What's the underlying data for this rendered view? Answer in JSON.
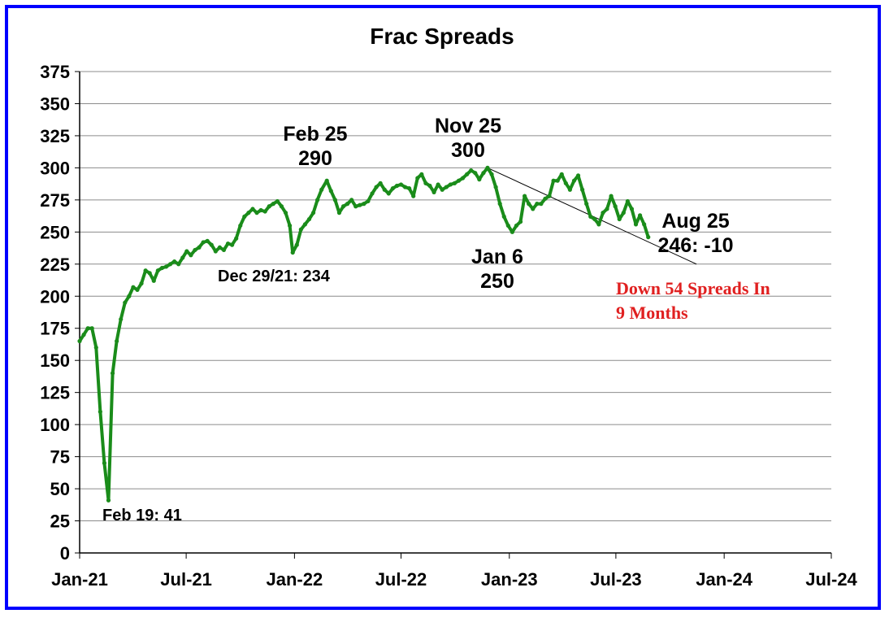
{
  "chart_data": {
    "type": "line",
    "title": "Frac Spreads",
    "xlabel": "",
    "ylabel": "",
    "xlim": [
      "2021-01-01",
      "2024-07-01"
    ],
    "ylim": [
      0,
      375
    ],
    "y_ticks": [
      0,
      25,
      50,
      75,
      100,
      125,
      150,
      175,
      200,
      225,
      250,
      275,
      300,
      325,
      350,
      375
    ],
    "x_ticks": [
      {
        "date": "2021-01-01",
        "label": "Jan-21"
      },
      {
        "date": "2021-07-01",
        "label": "Jul-21"
      },
      {
        "date": "2022-01-01",
        "label": "Jan-22"
      },
      {
        "date": "2022-07-01",
        "label": "Jul-22"
      },
      {
        "date": "2023-01-01",
        "label": "Jan-23"
      },
      {
        "date": "2023-07-01",
        "label": "Jul-23"
      },
      {
        "date": "2024-01-01",
        "label": "Jan-24"
      },
      {
        "date": "2024-07-01",
        "label": "Jul-24"
      }
    ],
    "grid": "horizontal",
    "series": [
      {
        "name": "",
        "color": "#1a8c1a",
        "points": [
          [
            "2021-01-01",
            165
          ],
          [
            "2021-01-08",
            170
          ],
          [
            "2021-01-15",
            175
          ],
          [
            "2021-01-22",
            175
          ],
          [
            "2021-01-29",
            160
          ],
          [
            "2021-02-05",
            110
          ],
          [
            "2021-02-12",
            70
          ],
          [
            "2021-02-19",
            41
          ],
          [
            "2021-02-26",
            140
          ],
          [
            "2021-03-05",
            165
          ],
          [
            "2021-03-12",
            182
          ],
          [
            "2021-03-19",
            195
          ],
          [
            "2021-03-26",
            200
          ],
          [
            "2021-04-02",
            207
          ],
          [
            "2021-04-09",
            205
          ],
          [
            "2021-04-16",
            210
          ],
          [
            "2021-04-23",
            220
          ],
          [
            "2021-04-30",
            218
          ],
          [
            "2021-05-07",
            212
          ],
          [
            "2021-05-14",
            220
          ],
          [
            "2021-05-21",
            222
          ],
          [
            "2021-05-28",
            223
          ],
          [
            "2021-06-04",
            225
          ],
          [
            "2021-06-11",
            227
          ],
          [
            "2021-06-18",
            225
          ],
          [
            "2021-06-25",
            230
          ],
          [
            "2021-07-02",
            235
          ],
          [
            "2021-07-09",
            232
          ],
          [
            "2021-07-16",
            236
          ],
          [
            "2021-07-23",
            238
          ],
          [
            "2021-07-30",
            242
          ],
          [
            "2021-08-06",
            243
          ],
          [
            "2021-08-13",
            240
          ],
          [
            "2021-08-20",
            235
          ],
          [
            "2021-08-27",
            238
          ],
          [
            "2021-09-03",
            236
          ],
          [
            "2021-09-10",
            241
          ],
          [
            "2021-09-17",
            240
          ],
          [
            "2021-09-24",
            245
          ],
          [
            "2021-10-01",
            255
          ],
          [
            "2021-10-08",
            262
          ],
          [
            "2021-10-15",
            265
          ],
          [
            "2021-10-22",
            268
          ],
          [
            "2021-10-29",
            265
          ],
          [
            "2021-11-05",
            267
          ],
          [
            "2021-11-12",
            266
          ],
          [
            "2021-11-19",
            270
          ],
          [
            "2021-11-26",
            272
          ],
          [
            "2021-12-03",
            274
          ],
          [
            "2021-12-10",
            270
          ],
          [
            "2021-12-17",
            265
          ],
          [
            "2021-12-24",
            255
          ],
          [
            "2021-12-29",
            234
          ],
          [
            "2022-01-05",
            240
          ],
          [
            "2022-01-12",
            252
          ],
          [
            "2022-01-19",
            256
          ],
          [
            "2022-01-26",
            260
          ],
          [
            "2022-02-02",
            265
          ],
          [
            "2022-02-09",
            275
          ],
          [
            "2022-02-16",
            283
          ],
          [
            "2022-02-25",
            290
          ],
          [
            "2022-03-04",
            282
          ],
          [
            "2022-03-11",
            275
          ],
          [
            "2022-03-18",
            265
          ],
          [
            "2022-03-25",
            270
          ],
          [
            "2022-04-01",
            272
          ],
          [
            "2022-04-08",
            275
          ],
          [
            "2022-04-15",
            270
          ],
          [
            "2022-04-22",
            271
          ],
          [
            "2022-04-29",
            272
          ],
          [
            "2022-05-06",
            274
          ],
          [
            "2022-05-13",
            280
          ],
          [
            "2022-05-20",
            285
          ],
          [
            "2022-05-27",
            288
          ],
          [
            "2022-06-03",
            283
          ],
          [
            "2022-06-10",
            280
          ],
          [
            "2022-06-17",
            284
          ],
          [
            "2022-06-24",
            286
          ],
          [
            "2022-07-01",
            287
          ],
          [
            "2022-07-08",
            285
          ],
          [
            "2022-07-15",
            284
          ],
          [
            "2022-07-22",
            278
          ],
          [
            "2022-07-29",
            292
          ],
          [
            "2022-08-05",
            295
          ],
          [
            "2022-08-12",
            288
          ],
          [
            "2022-08-19",
            286
          ],
          [
            "2022-08-26",
            281
          ],
          [
            "2022-09-02",
            287
          ],
          [
            "2022-09-09",
            283
          ],
          [
            "2022-09-16",
            285
          ],
          [
            "2022-09-23",
            287
          ],
          [
            "2022-09-30",
            288
          ],
          [
            "2022-10-07",
            290
          ],
          [
            "2022-10-14",
            292
          ],
          [
            "2022-10-21",
            295
          ],
          [
            "2022-10-28",
            298
          ],
          [
            "2022-11-04",
            296
          ],
          [
            "2022-11-11",
            291
          ],
          [
            "2022-11-18",
            296
          ],
          [
            "2022-11-25",
            300
          ],
          [
            "2022-12-02",
            295
          ],
          [
            "2022-12-09",
            285
          ],
          [
            "2022-12-16",
            272
          ],
          [
            "2022-12-23",
            262
          ],
          [
            "2022-12-30",
            255
          ],
          [
            "2023-01-06",
            250
          ],
          [
            "2023-01-13",
            255
          ],
          [
            "2023-01-20",
            258
          ],
          [
            "2023-01-27",
            278
          ],
          [
            "2023-02-03",
            272
          ],
          [
            "2023-02-10",
            268
          ],
          [
            "2023-02-17",
            272
          ],
          [
            "2023-02-24",
            272
          ],
          [
            "2023-03-03",
            276
          ],
          [
            "2023-03-10",
            278
          ],
          [
            "2023-03-17",
            290
          ],
          [
            "2023-03-24",
            290
          ],
          [
            "2023-03-31",
            295
          ],
          [
            "2023-04-07",
            288
          ],
          [
            "2023-04-14",
            283
          ],
          [
            "2023-04-21",
            290
          ],
          [
            "2023-04-28",
            294
          ],
          [
            "2023-05-05",
            283
          ],
          [
            "2023-05-12",
            272
          ],
          [
            "2023-05-19",
            262
          ],
          [
            "2023-05-26",
            260
          ],
          [
            "2023-06-02",
            256
          ],
          [
            "2023-06-09",
            265
          ],
          [
            "2023-06-16",
            268
          ],
          [
            "2023-06-23",
            278
          ],
          [
            "2023-06-30",
            270
          ],
          [
            "2023-07-07",
            260
          ],
          [
            "2023-07-14",
            265
          ],
          [
            "2023-07-21",
            274
          ],
          [
            "2023-07-28",
            268
          ],
          [
            "2023-08-04",
            256
          ],
          [
            "2023-08-11",
            263
          ],
          [
            "2023-08-18",
            256
          ],
          [
            "2023-08-25",
            246
          ]
        ]
      }
    ],
    "trendline": {
      "from": [
        "2022-11-25",
        300
      ],
      "to": [
        "2023-11-15",
        225
      ]
    },
    "annotations": [
      {
        "lines": [
          "Feb 19: 41"
        ]
      },
      {
        "lines": [
          "Dec 29/21: 234"
        ]
      },
      {
        "lines": [
          "Feb 25",
          "290"
        ]
      },
      {
        "lines": [
          "Nov 25",
          "300"
        ]
      },
      {
        "lines": [
          "Jan 6",
          "250"
        ]
      },
      {
        "lines": [
          "Aug 25",
          "246: -10"
        ]
      },
      {
        "lines": [
          "Down 54 Spreads In",
          "9 Months"
        ],
        "color": "#e02020"
      }
    ]
  }
}
